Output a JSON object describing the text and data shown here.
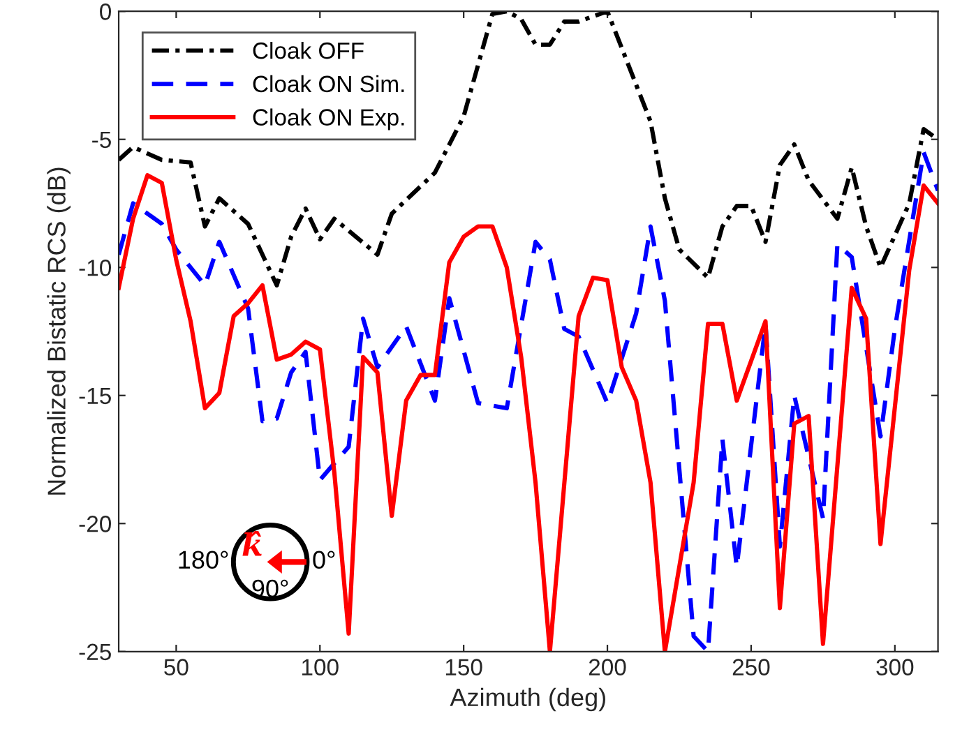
{
  "chart_data": {
    "type": "line",
    "xlabel": "Azimuth (deg)",
    "ylabel": "Normalized Bistatic RCS (dB)",
    "xlim": [
      30,
      315
    ],
    "ylim": [
      -25,
      0
    ],
    "xticks": [
      50,
      100,
      150,
      200,
      250,
      300
    ],
    "yticks": [
      -25,
      -20,
      -15,
      -10,
      -5,
      0
    ],
    "grid": false,
    "legend": "top left",
    "marker": "none",
    "series": [
      {
        "name": "Cloak OFF",
        "color": "#000000",
        "line_style": "dashdot",
        "x": [
          30,
          35,
          45,
          55,
          60,
          65,
          75,
          85,
          90,
          95,
          100,
          105,
          120,
          125,
          140,
          150,
          160,
          165,
          170,
          175,
          180,
          185,
          190,
          200,
          215,
          220,
          225,
          235,
          240,
          245,
          250,
          255,
          260,
          265,
          270,
          280,
          285,
          290,
          295,
          305,
          310,
          315
        ],
        "values": [
          -5.8,
          -5.3,
          -5.8,
          -5.9,
          -8.4,
          -7.3,
          -8.3,
          -10.7,
          -8.8,
          -7.7,
          -8.9,
          -8.1,
          -9.5,
          -7.9,
          -6.3,
          -4.1,
          -0.1,
          0,
          -0.3,
          -1.3,
          -1.3,
          -0.4,
          -0.4,
          0,
          -4.3,
          -7.3,
          -9.3,
          -10.4,
          -8.4,
          -7.6,
          -7.6,
          -9.0,
          -6.0,
          -5.2,
          -6.6,
          -8.1,
          -6.1,
          -8.4,
          -10.0,
          -7.5,
          -4.6,
          -5.0
        ]
      },
      {
        "name": "Cloak ON Sim.",
        "color": "#0000ff",
        "line_style": "dashed",
        "x": [
          30,
          35,
          45,
          50,
          60,
          65,
          75,
          80,
          85,
          90,
          95,
          100,
          110,
          115,
          120,
          130,
          140,
          145,
          155,
          165,
          175,
          180,
          185,
          190,
          200,
          210,
          215,
          220,
          230,
          235,
          240,
          245,
          255,
          260,
          265,
          275,
          280,
          285,
          295,
          300,
          310,
          315
        ],
        "values": [
          -9.5,
          -7.5,
          -8.3,
          -9.3,
          -10.7,
          -9.0,
          -11.6,
          -16.0,
          -15.9,
          -14.1,
          -13.3,
          -18.3,
          -17.0,
          -12.0,
          -13.9,
          -12.3,
          -15.2,
          -11.2,
          -15.3,
          -15.5,
          -9.0,
          -9.7,
          -12.4,
          -12.7,
          -15.3,
          -11.8,
          -8.4,
          -11.3,
          -24.4,
          -25,
          -16.7,
          -21.7,
          -12.2,
          -20.9,
          -15.0,
          -19.8,
          -9.1,
          -9.6,
          -16.6,
          -12.4,
          -5.5,
          -7.0
        ]
      },
      {
        "name": "Cloak ON Exp.",
        "color": "#ff0000",
        "line_style": "solid",
        "x": [
          30,
          35,
          40,
          45,
          50,
          55,
          60,
          65,
          70,
          75,
          80,
          85,
          90,
          95,
          100,
          105,
          110,
          115,
          120,
          125,
          130,
          135,
          140,
          145,
          150,
          155,
          160,
          165,
          170,
          175,
          180,
          190,
          195,
          200,
          205,
          210,
          215,
          220,
          230,
          235,
          240,
          245,
          255,
          260,
          265,
          270,
          275,
          285,
          290,
          295,
          305,
          310,
          315
        ],
        "values": [
          -10.8,
          -8.1,
          -6.4,
          -6.7,
          -9.7,
          -12.1,
          -15.5,
          -14.9,
          -11.9,
          -11.4,
          -10.7,
          -13.6,
          -13.4,
          -12.9,
          -13.2,
          -18.0,
          -24.3,
          -13.5,
          -14.1,
          -19.7,
          -15.2,
          -14.2,
          -14.2,
          -9.8,
          -8.8,
          -8.4,
          -8.4,
          -10.0,
          -13.5,
          -18.4,
          -25,
          -11.9,
          -10.4,
          -10.5,
          -13.9,
          -15.2,
          -18.4,
          -25,
          -18.4,
          -12.2,
          -12.2,
          -15.2,
          -12.1,
          -23.3,
          -16.1,
          -15.8,
          -24.7,
          -10.8,
          -12.0,
          -20.8,
          -10.1,
          -6.8,
          -7.5
        ]
      }
    ],
    "annotations": [
      "180°",
      "0°",
      "90°",
      "k̂"
    ]
  }
}
